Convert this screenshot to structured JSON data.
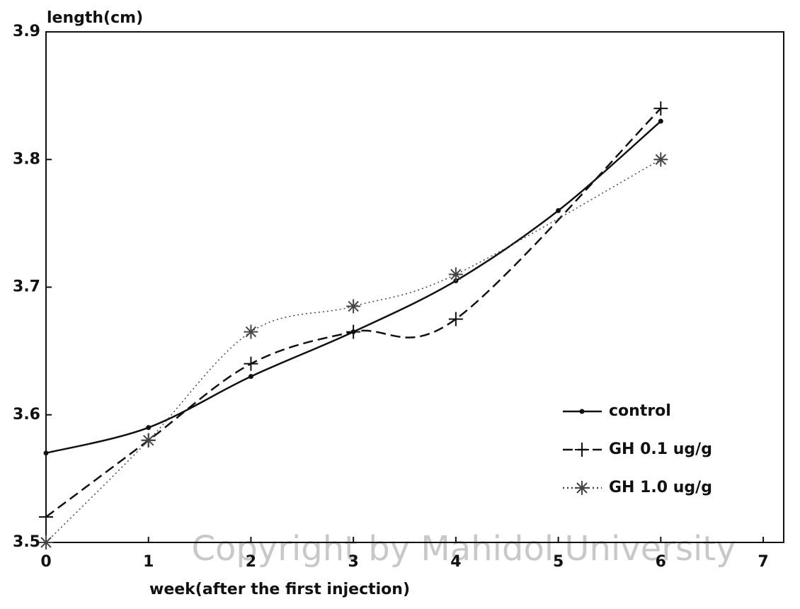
{
  "chart_data": {
    "type": "line",
    "y_label": "length(cm)",
    "x_label": "week(after the first injection)",
    "watermark": "Copyright by Mahidol University",
    "xlim": [
      0,
      7.2
    ],
    "xticks": [
      0,
      1,
      2,
      3,
      4,
      5,
      6,
      7
    ],
    "ylim": [
      3.5,
      3.9
    ],
    "yticks": [
      {
        "value": 3.5,
        "label": "3.5"
      },
      {
        "value": 3.6,
        "label": "3.6"
      },
      {
        "value": 3.7,
        "label": "3.7"
      },
      {
        "value": 3.8,
        "label": "3.8"
      },
      {
        "value": 3.9,
        "label": "3.9"
      }
    ],
    "legend": "lower right",
    "series": [
      {
        "name": "control",
        "color": "#111111",
        "style": "solid",
        "marker": "dot",
        "x": [
          0,
          1,
          2,
          3,
          4,
          5,
          6
        ],
        "values": [
          3.57,
          3.59,
          3.63,
          3.665,
          3.705,
          3.76,
          3.83
        ]
      },
      {
        "name": "GH 0.1 ug/g",
        "color": "#111111",
        "style": "dashed",
        "marker": "plus",
        "x": [
          0,
          1,
          2,
          3,
          4,
          6
        ],
        "values": [
          3.52,
          3.58,
          3.64,
          3.665,
          3.675,
          3.84
        ]
      },
      {
        "name": "GH 1.0 ug/g",
        "color": "#444444",
        "style": "dotted",
        "marker": "star",
        "x": [
          0,
          1,
          2,
          3,
          4,
          6
        ],
        "values": [
          3.5,
          3.58,
          3.665,
          3.685,
          3.71,
          3.8
        ]
      }
    ]
  }
}
